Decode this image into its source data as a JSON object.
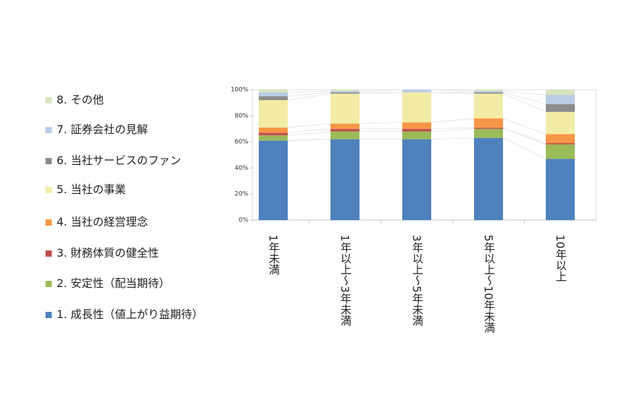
{
  "chart_data": {
    "type": "stacked_bar",
    "categories": [
      "1年未満",
      "1年以上～3年未満",
      "3年以上～5年未満",
      "5年以上～10年未満",
      "10年以上"
    ],
    "series": [
      {
        "name": "1. 成長性（値上がり益期待）",
        "color": "#4f81bd",
        "values": [
          61,
          62,
          62,
          63,
          47
        ]
      },
      {
        "name": "2. 安定性（配当期待）",
        "color": "#9bbb59",
        "values": [
          4,
          6,
          6,
          7,
          11
        ]
      },
      {
        "name": "3. 財務体質の健全性",
        "color": "#c0504d",
        "values": [
          2,
          2,
          2,
          1,
          1
        ]
      },
      {
        "name": "4. 当社の経営理念",
        "color": "#f79646",
        "values": [
          4,
          4,
          5,
          7,
          7
        ]
      },
      {
        "name": "5. 当社の事業",
        "color": "#f2eca6",
        "values": [
          21,
          23,
          23,
          19,
          17
        ]
      },
      {
        "name": "6. 当社サービスのファン",
        "color": "#8c8c8c",
        "values": [
          3,
          1,
          0,
          1,
          6
        ]
      },
      {
        "name": "7. 証券会社の見解",
        "color": "#b9cde5",
        "values": [
          3,
          1,
          2,
          1,
          7
        ]
      },
      {
        "name": "8. その他",
        "color": "#d7e4bd",
        "values": [
          2,
          1,
          0,
          1,
          4
        ]
      }
    ],
    "ylim": [
      0,
      100
    ],
    "yticks": [
      {
        "value": 0,
        "label": "0%"
      },
      {
        "value": 20,
        "label": "20%"
      },
      {
        "value": 40,
        "label": "40%"
      },
      {
        "value": 60,
        "label": "60%"
      },
      {
        "value": 80,
        "label": "80%"
      },
      {
        "value": 100,
        "label": "100%"
      }
    ],
    "grid": false,
    "legend": "left"
  }
}
